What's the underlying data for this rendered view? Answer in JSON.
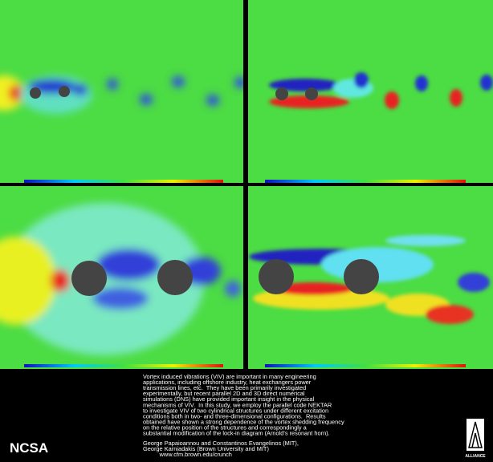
{
  "caption": {
    "lines": [
      "Vortex induced vibrations (VIV) are important in many engineering",
      "applications, including offshore industry, heat exchangers power",
      "transmission lines, etc.  They have been primarily investigated",
      "experimentally, but recent parallel 2D and 3D direct numerical",
      "simulations (DNS) have provided important insight in the physical",
      "mechanisms of VIV.  In this study, we employ the parallel code NEKTAR",
      "to investigate VIV of two cylindrical structures under different excitation",
      "conditions both in two- and three-dimensional configurations.  Results",
      "obtained have shown a strong dependence of the vortex shedding frequency",
      "on the relative position of the structures and correspondingly a",
      "substantial modification of the lock-in diagram (Arnold's resonant horn)."
    ],
    "credits": [
      "George Papaioannou and Constantinos Evangelinos (MIT),",
      "George Karniadakis (Brown University and MIT)",
      "          www.cfm.brown.edu/crunch"
    ]
  },
  "logos": {
    "left": "NCSA",
    "right": "ALLIANCE"
  }
}
